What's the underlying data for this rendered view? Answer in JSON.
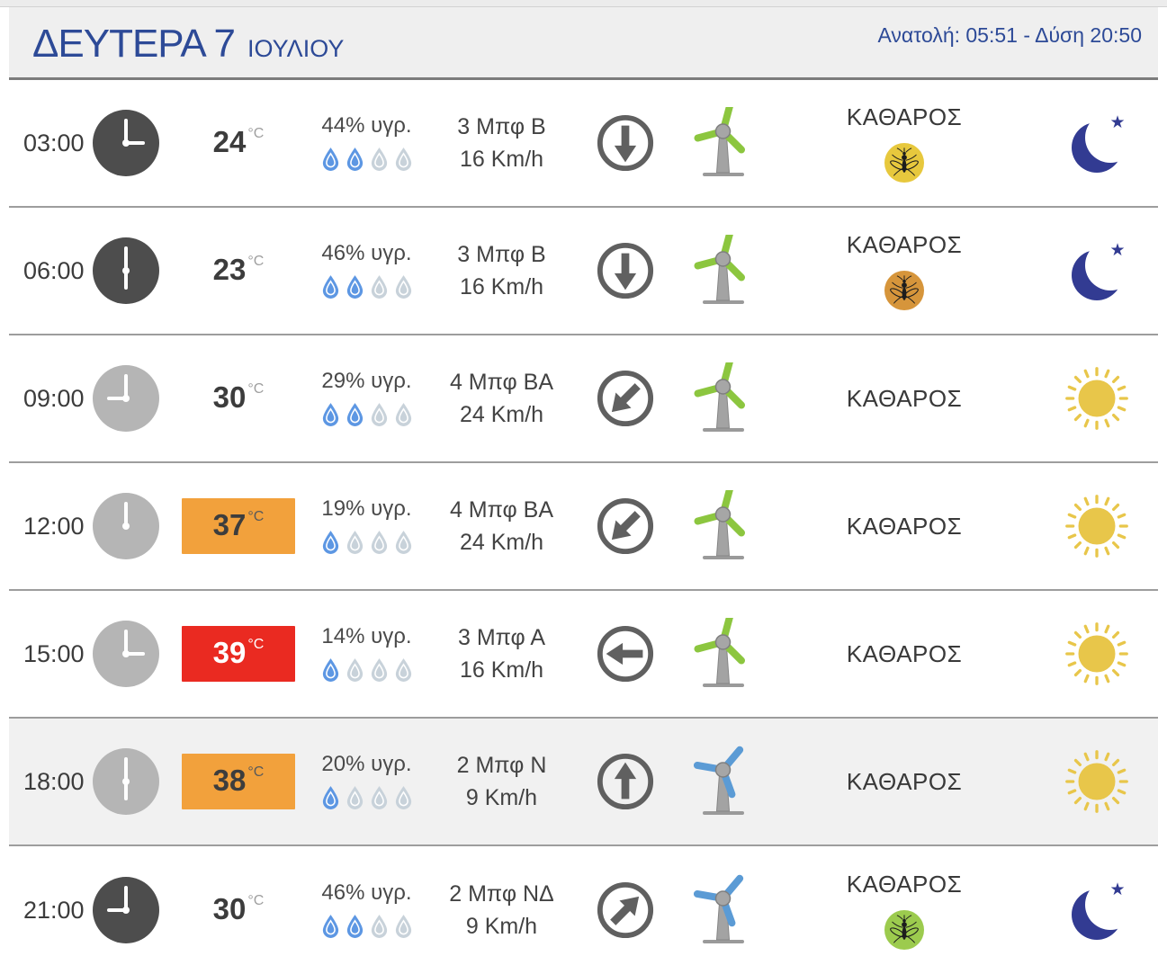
{
  "header": {
    "day_title": "ΔΕΥΤΕΡΑ 7",
    "month_title": "ΙΟΥΛΙΟΥ",
    "sun_info": "Ανατολή: 05:51  - Δύση 20:50"
  },
  "colors": {
    "accent_navy": "#2d4a97",
    "row_highlight": "#f1f1f1",
    "temp_orange": "#f2a13c",
    "temp_red": "#ea2a21",
    "drop_active": "#5d97e3",
    "drop_inactive": "#c8d2da",
    "blade_green": "#8cc63f",
    "blade_blue": "#5b9bd5",
    "sun_yellow": "#e8c64a",
    "moon_navy": "#323b92",
    "clock_night": "#4d4d4d",
    "clock_day": "#b5b5b5"
  },
  "rows": [
    {
      "time": "03:00",
      "clock_variant": "night",
      "hour_deg": 90,
      "temp": "24",
      "temp_unit": "°C",
      "temp_style": "plain",
      "humidity": "44% υγρ.",
      "drops_active": 2,
      "wind_line1": "3 Μπφ Β",
      "wind_line2": "16 Km/h",
      "arrow_deg": 180,
      "turbine": "green",
      "sky": "ΚΑΘΑΡΟΣ",
      "mosquito": "#e7c83d",
      "day_icon": "moon",
      "highlight": false
    },
    {
      "time": "06:00",
      "clock_variant": "night",
      "hour_deg": 180,
      "temp": "23",
      "temp_unit": "°C",
      "temp_style": "plain",
      "humidity": "46% υγρ.",
      "drops_active": 2,
      "wind_line1": "3 Μπφ Β",
      "wind_line2": "16 Km/h",
      "arrow_deg": 180,
      "turbine": "green",
      "sky": "ΚΑΘΑΡΟΣ",
      "mosquito": "#d6953b",
      "day_icon": "moon",
      "highlight": false
    },
    {
      "time": "09:00",
      "clock_variant": "day",
      "hour_deg": 270,
      "temp": "30",
      "temp_unit": "°C",
      "temp_style": "plain",
      "humidity": "29% υγρ.",
      "drops_active": 2,
      "wind_line1": "4 Μπφ ΒΑ",
      "wind_line2": "24 Km/h",
      "arrow_deg": 225,
      "turbine": "green",
      "sky": "ΚΑΘΑΡΟΣ",
      "mosquito": null,
      "day_icon": "sun",
      "highlight": false
    },
    {
      "time": "12:00",
      "clock_variant": "day",
      "hour_deg": 0,
      "temp": "37",
      "temp_unit": "°C",
      "temp_style": "orange",
      "humidity": "19% υγρ.",
      "drops_active": 1,
      "wind_line1": "4 Μπφ ΒΑ",
      "wind_line2": "24 Km/h",
      "arrow_deg": 225,
      "turbine": "green",
      "sky": "ΚΑΘΑΡΟΣ",
      "mosquito": null,
      "day_icon": "sun",
      "highlight": false
    },
    {
      "time": "15:00",
      "clock_variant": "day",
      "hour_deg": 90,
      "temp": "39",
      "temp_unit": "°C",
      "temp_style": "red",
      "humidity": "14% υγρ.",
      "drops_active": 1,
      "wind_line1": "3 Μπφ Α",
      "wind_line2": "16 Km/h",
      "arrow_deg": 270,
      "turbine": "green",
      "sky": "ΚΑΘΑΡΟΣ",
      "mosquito": null,
      "day_icon": "sun",
      "highlight": false
    },
    {
      "time": "18:00",
      "clock_variant": "day",
      "hour_deg": 180,
      "temp": "38",
      "temp_unit": "°C",
      "temp_style": "orange",
      "humidity": "20% υγρ.",
      "drops_active": 1,
      "wind_line1": "2 Μπφ Ν",
      "wind_line2": "9 Km/h",
      "arrow_deg": 0,
      "turbine": "blue",
      "sky": "ΚΑΘΑΡΟΣ",
      "mosquito": null,
      "day_icon": "sun",
      "highlight": true
    },
    {
      "time": "21:00",
      "clock_variant": "night",
      "hour_deg": 270,
      "temp": "30",
      "temp_unit": "°C",
      "temp_style": "plain",
      "humidity": "46% υγρ.",
      "drops_active": 2,
      "wind_line1": "2 Μπφ ΝΔ",
      "wind_line2": "9 Km/h",
      "arrow_deg": 45,
      "turbine": "blue",
      "sky": "ΚΑΘΑΡΟΣ",
      "mosquito": "#9ccb4e",
      "day_icon": "moon",
      "highlight": false
    }
  ]
}
